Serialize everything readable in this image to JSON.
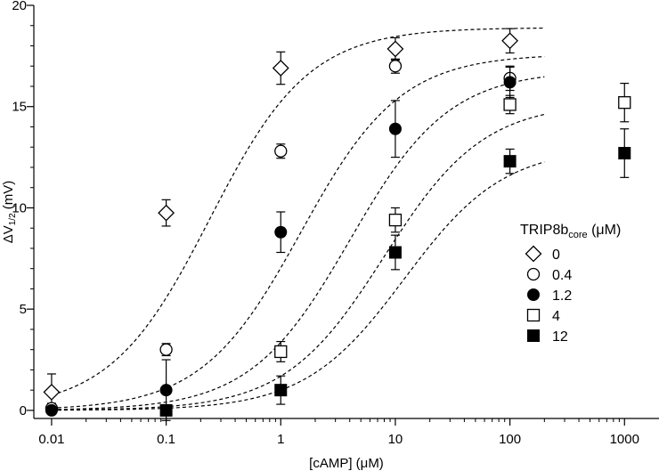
{
  "chart_data": {
    "type": "scatter",
    "xscale": "log",
    "xlim": [
      0.007,
      2000
    ],
    "ylim": [
      -0.4,
      20
    ],
    "xticks": [
      0.01,
      0.1,
      1,
      10,
      100,
      1000
    ],
    "xtick_labels": [
      "0.01",
      "0.1",
      "1",
      "10",
      "100",
      "1000"
    ],
    "yticks": [
      0,
      5,
      10,
      15,
      20
    ],
    "ytick_labels": [
      "0",
      "5",
      "10",
      "15",
      "20"
    ],
    "xlabel": "[cAMP] (μM)",
    "ylabel": {
      "base": "ΔV",
      "sub": "1/2",
      "rest": " (mV)"
    },
    "grid": false,
    "legend": {
      "position": "right",
      "title": {
        "base": "TRIP8b",
        "sub": "core",
        "rest": " (μM)"
      }
    },
    "series": [
      {
        "name": "0",
        "marker": "diamond",
        "points": [
          {
            "x": 0.01,
            "y": 0.9,
            "err": 0.9
          },
          {
            "x": 0.1,
            "y": 9.75,
            "err": 0.65
          },
          {
            "x": 1,
            "y": 16.9,
            "err": 0.8
          },
          {
            "x": 10,
            "y": 17.85,
            "err": 0.55
          },
          {
            "x": 100,
            "y": 18.25,
            "err": 0.6
          }
        ],
        "fit": {
          "bottom": 0,
          "top": 18.9,
          "ec50": 0.24,
          "hill": 1.0
        }
      },
      {
        "name": "0.4",
        "marker": "circle-open",
        "points": [
          {
            "x": 0.01,
            "y": 0.1,
            "err": 0.25
          },
          {
            "x": 0.1,
            "y": 3.0,
            "err": 0.3
          },
          {
            "x": 1,
            "y": 12.8,
            "err": 0.35
          },
          {
            "x": 10,
            "y": 17.0,
            "err": 0.35
          },
          {
            "x": 100,
            "y": 16.4,
            "err": 0.6
          }
        ],
        "fit": {
          "bottom": 0,
          "top": 17.6,
          "ec50": 1.5,
          "hill": 1.0
        }
      },
      {
        "name": "1.2",
        "marker": "circle-filled",
        "points": [
          {
            "x": 0.01,
            "y": 0.0,
            "err": 0.15
          },
          {
            "x": 0.1,
            "y": 1.0,
            "err": 1.5
          },
          {
            "x": 1,
            "y": 8.8,
            "err": 1.0
          },
          {
            "x": 10,
            "y": 13.9,
            "err": 1.4
          },
          {
            "x": 100,
            "y": 16.2,
            "err": 0.75
          }
        ],
        "fit": {
          "bottom": 0,
          "top": 16.8,
          "ec50": 4.0,
          "hill": 1.0
        }
      },
      {
        "name": "4",
        "marker": "square-open",
        "points": [
          {
            "x": 1,
            "y": 2.9,
            "err": 0.5
          },
          {
            "x": 10,
            "y": 9.4,
            "err": 0.6
          },
          {
            "x": 100,
            "y": 15.1,
            "err": 0.45
          },
          {
            "x": 1000,
            "y": 15.2,
            "err": 0.95
          }
        ],
        "fit": {
          "bottom": 0,
          "top": 15.2,
          "ec50": 8.0,
          "hill": 1.0
        }
      },
      {
        "name": "12",
        "marker": "square-filled",
        "points": [
          {
            "x": 0.1,
            "y": 0.0,
            "err": 0.0
          },
          {
            "x": 1,
            "y": 1.0,
            "err": 0.7
          },
          {
            "x": 10,
            "y": 7.8,
            "err": 0.85
          },
          {
            "x": 100,
            "y": 12.3,
            "err": 0.6
          },
          {
            "x": 1000,
            "y": 12.7,
            "err": 1.2
          }
        ],
        "fit": {
          "bottom": 0,
          "top": 13.0,
          "ec50": 12.0,
          "hill": 1.0
        }
      }
    ]
  }
}
